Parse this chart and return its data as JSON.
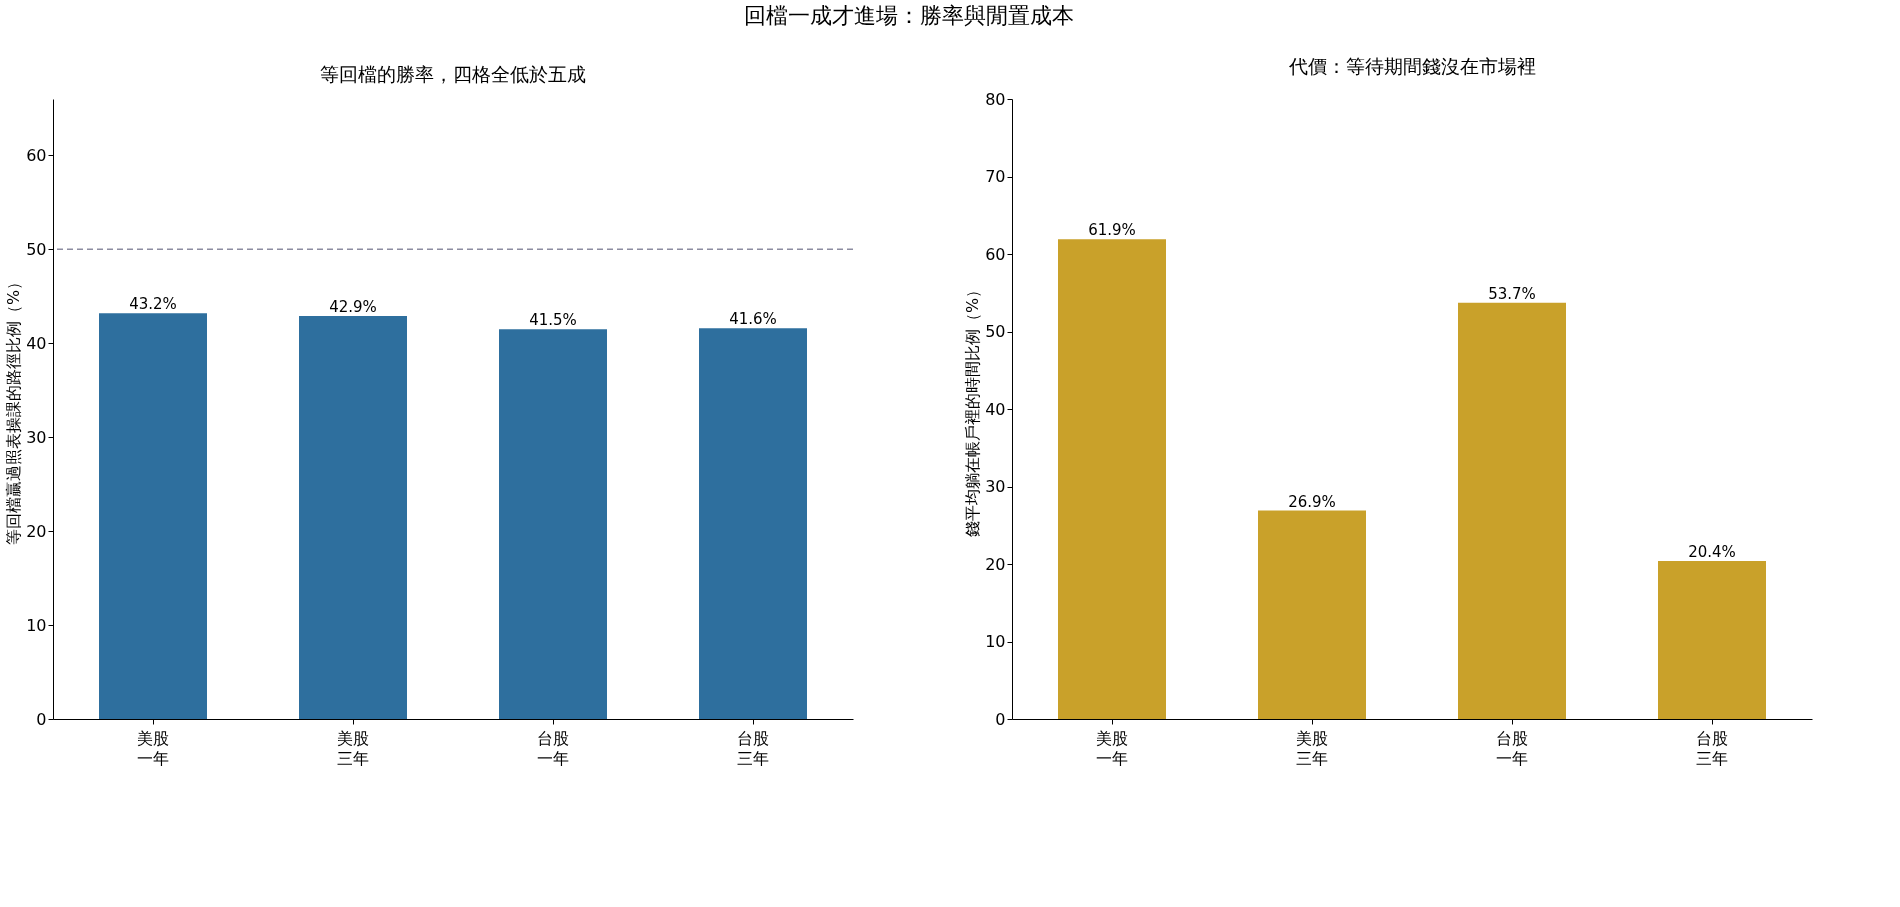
{
  "chart_data": [
    {
      "type": "bar",
      "title": "等回檔的勝率，四格全低於五成",
      "ylabel": "等回檔贏過照表操課的路徑比例（%）",
      "annotations": [
        "回檔一成才進場：勝率與閒置成本"
      ],
      "categories": [
        "美股一年",
        "美股三年",
        "台股一年",
        "台股三年"
      ],
      "series": [
        {
          "color": "#2e6f9e",
          "values": [
            43.2,
            42.9,
            41.5,
            41.6
          ]
        }
      ],
      "value_labels": [
        "43.2%",
        "42.9%",
        "41.5%",
        "41.6%"
      ],
      "ylim": [
        0,
        66
      ],
      "yticks": [
        0,
        10,
        20,
        30,
        40,
        50,
        60
      ],
      "grid": false,
      "ref_lines": [
        {
          "axis": "y",
          "value": 50,
          "color": "#8c8ca0",
          "line_style": "dashed"
        }
      ]
    },
    {
      "type": "bar",
      "title": "代價：等待期間錢沒在市場裡",
      "ylabel": "錢平均躺在帳戶裡的時間比例（%）",
      "categories": [
        "美股一年",
        "美股三年",
        "台股一年",
        "台股三年"
      ],
      "series": [
        {
          "color": "#c9a12a",
          "values": [
            61.9,
            26.9,
            53.7,
            20.4
          ]
        }
      ],
      "value_labels": [
        "61.9%",
        "26.9%",
        "53.7%",
        "20.4%"
      ],
      "ylim": [
        0,
        80
      ],
      "yticks": [
        0,
        10,
        20,
        30,
        40,
        50,
        60,
        70,
        80
      ],
      "grid": false
    }
  ]
}
